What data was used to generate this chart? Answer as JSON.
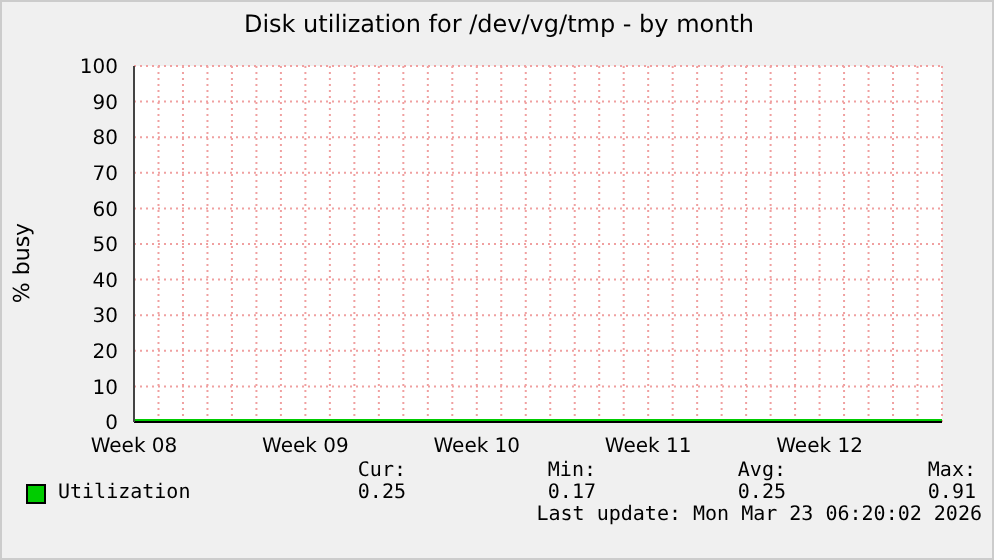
{
  "chart_data": {
    "type": "line",
    "title": "Disk utilization for /dev/vg/tmp - by month",
    "ylabel": "% busy",
    "categories": [
      "Week 08",
      null,
      null,
      null,
      null,
      null,
      null,
      "Week 09",
      null,
      null,
      null,
      null,
      null,
      null,
      "Week 10",
      null,
      null,
      null,
      null,
      null,
      null,
      "Week 11",
      null,
      null,
      null,
      null,
      null,
      null,
      "Week 12",
      null,
      null,
      null,
      null,
      null
    ],
    "series": [
      {
        "name": "Utilization",
        "color": "#00cc00",
        "values": [
          0.25,
          0.25,
          0.25,
          0.25,
          0.25,
          0.25,
          0.25,
          0.25,
          0.25,
          0.25,
          0.25,
          0.25,
          0.25,
          0.25,
          0.25,
          0.25,
          0.25,
          0.25,
          0.25,
          0.25,
          0.25,
          0.25,
          0.25,
          0.25,
          0.25,
          0.25,
          0.25,
          0.25,
          0.25,
          0.25,
          0.25,
          0.25,
          0.25,
          0.25
        ]
      }
    ],
    "ylim": [
      0,
      100
    ],
    "yticks": [
      0,
      10,
      20,
      30,
      40,
      50,
      60,
      70,
      80,
      90,
      100
    ],
    "grid": true,
    "legend": "bottom",
    "annotations": [
      "Cur:",
      "Min:",
      "Avg:",
      "Max:",
      "0.25",
      "0.17",
      "0.25",
      "0.91",
      "Last update: Mon Mar 23 06:20:02 2026"
    ]
  }
}
